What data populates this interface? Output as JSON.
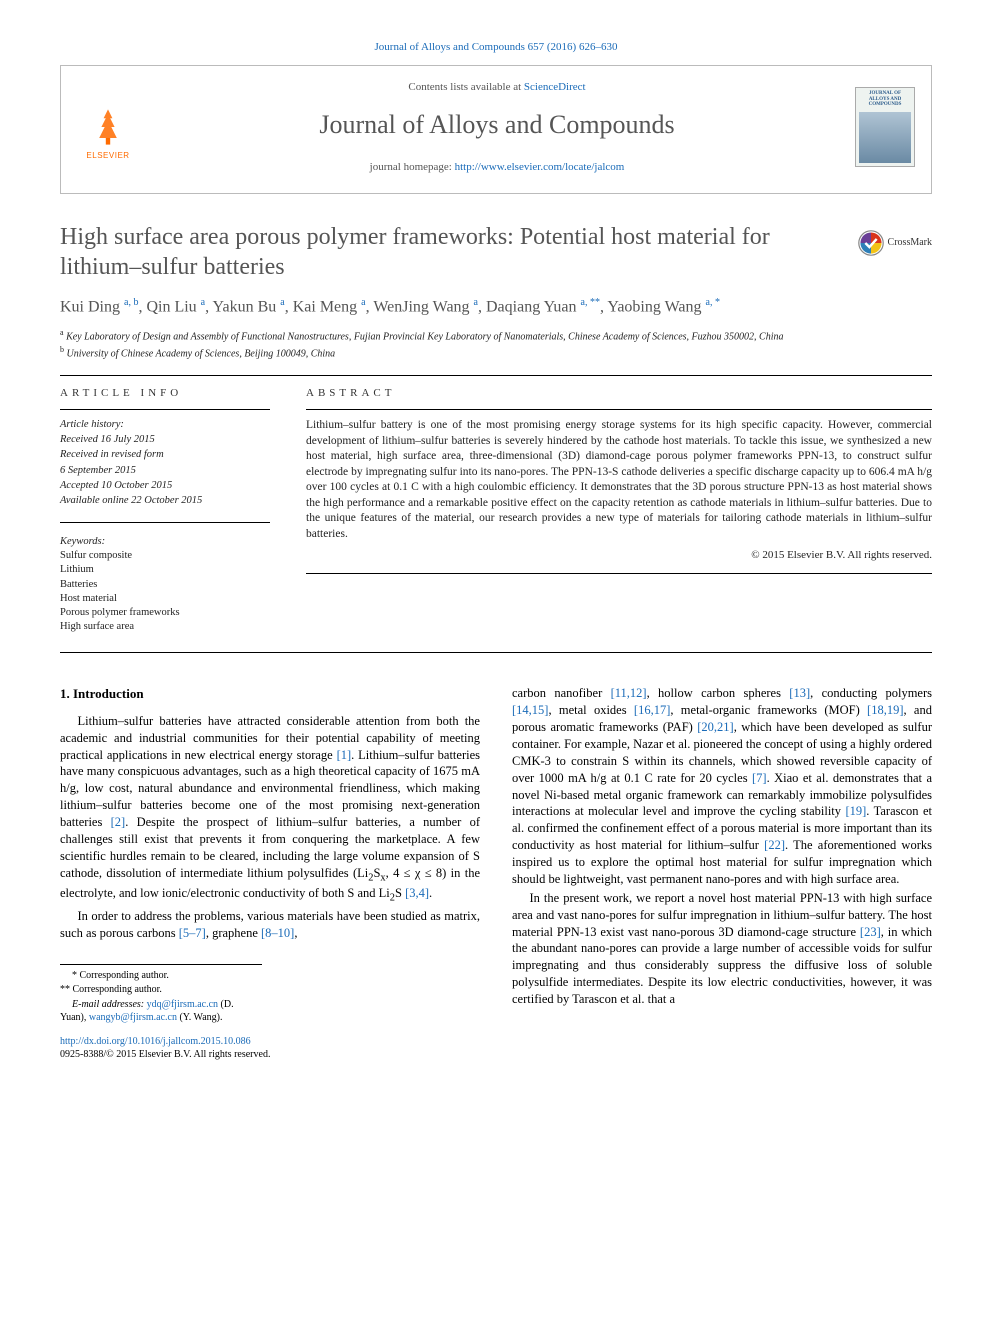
{
  "header": {
    "citation": "Journal of Alloys and Compounds 657 (2016) 626–630",
    "contents_line_pre": "Contents lists available at ",
    "contents_link": "ScienceDirect",
    "journal_name": "Journal of Alloys and Compounds",
    "homepage_pre": "journal homepage: ",
    "homepage_url": "http://www.elsevier.com/locate/jalcom",
    "publisher_logo_text": "ELSEVIER",
    "cover_text": "JOURNAL OF ALLOYS AND COMPOUNDS"
  },
  "crossmark_label": "CrossMark",
  "title": "High surface area porous polymer frameworks: Potential host material for lithium–sulfur batteries",
  "authors_html": "Kui Ding <sup>a, b</sup>, Qin Liu <sup>a</sup>, Yakun Bu <sup>a</sup>, Kai Meng <sup>a</sup>, WenJing Wang <sup>a</sup>, Daqiang Yuan <sup>a, **</sup>, Yaobing Wang <sup>a, *</sup>",
  "affils": [
    "<sup>a</sup> Key Laboratory of Design and Assembly of Functional Nanostructures, Fujian Provincial Key Laboratory of Nanomaterials, Chinese Academy of Sciences, Fuzhou 350002, China",
    "<sup>b</sup> University of Chinese Academy of Sciences, Beijing 100049, China"
  ],
  "info_label": "ARTICLE INFO",
  "abs_label": "ABSTRACT",
  "history": {
    "head": "Article history:",
    "lines": [
      "Received 16 July 2015",
      "Received in revised form",
      "6 September 2015",
      "Accepted 10 October 2015",
      "Available online 22 October 2015"
    ]
  },
  "keywords": {
    "head": "Keywords:",
    "items": [
      "Sulfur composite",
      "Lithium",
      "Batteries",
      "Host material",
      "Porous polymer frameworks",
      "High surface area"
    ]
  },
  "abstract": "Lithium–sulfur battery is one of the most promising energy storage systems for its high specific capacity. However, commercial development of lithium–sulfur batteries is severely hindered by the cathode host materials. To tackle this issue, we synthesized a new host material, high surface area, three-dimensional (3D) diamond-cage porous polymer frameworks PPN-13, to construct sulfur electrode by impregnating sulfur into its nano-pores. The PPN-13-S cathode deliveries a specific discharge capacity up to 606.4 mA h/g over 100 cycles at 0.1 C with a high coulombic efficiency. It demonstrates that the 3D porous structure PPN-13 as host material shows the high performance and a remarkable positive effect on the capacity retention as cathode materials in lithium–sulfur batteries. Due to the unique features of the material, our research provides a new type of materials for tailoring cathode materials in lithium–sulfur batteries.",
  "copyright": "© 2015 Elsevier B.V. All rights reserved.",
  "intro_heading": "1. Introduction",
  "intro_p1": "Lithium–sulfur batteries have attracted considerable attention from both the academic and industrial communities for their potential capability of meeting practical applications in new electrical energy storage <a class=\"ref\">[1]</a>. Lithium–sulfur batteries have many conspicuous advantages, such as a high theoretical capacity of 1675 mA h/g, low cost, natural abundance and environmental friendliness, which making lithium–sulfur batteries become one of the most promising next-generation batteries <a class=\"ref\">[2]</a>. Despite the prospect of lithium–sulfur batteries, a number of challenges still exist that prevents it from conquering the marketplace. A few scientific hurdles remain to be cleared, including the large volume expansion of S cathode, dissolution of intermediate lithium polysulfides (Li<sub>2</sub>S<sub>x</sub>, 4 ≤ χ ≤ 8) in the electrolyte, and low ionic/electronic conductivity of both S and Li<sub>2</sub>S <a class=\"ref\">[3,4]</a>.",
  "intro_p2": "In order to address the problems, various materials have been studied as matrix, such as porous carbons <a class=\"ref\">[5–7]</a>, graphene <a class=\"ref\">[8–10]</a>,",
  "intro_p3": "carbon nanofiber <a class=\"ref\">[11,12]</a>, hollow carbon spheres <a class=\"ref\">[13]</a>, conducting polymers <a class=\"ref\">[14,15]</a>, metal oxides <a class=\"ref\">[16,17]</a>, metal-organic frameworks (MOF) <a class=\"ref\">[18,19]</a>, and porous aromatic frameworks (PAF) <a class=\"ref\">[20,21]</a>, which have been developed as sulfur container. For example, Nazar et al. pioneered the concept of using a highly ordered CMK-3 to constrain S within its channels, which showed reversible capacity of over 1000 mA h/g at 0.1 C rate for 20 cycles <a class=\"ref\">[7]</a>. Xiao et al. demonstrates that a novel Ni-based metal organic framework can remarkably immobilize polysulfides interactions at molecular level and improve the cycling stability <a class=\"ref\">[19]</a>. Tarascon et al. confirmed the confinement effect of a porous material is more important than its conductivity as host material for lithium–sulfur <a class=\"ref\">[22]</a>. The aforementioned works inspired us to explore the optimal host material for sulfur impregnation which should be lightweight, vast permanent nano-pores and with high surface area.",
  "intro_p4": "In the present work, we report a novel host material PPN-13 with high surface area and vast nano-pores for sulfur impregnation in lithium–sulfur battery. The host material PPN-13 exist vast nano-porous 3D diamond-cage structure <a class=\"ref\">[23]</a>, in which the abundant nano-pores can provide a large number of accessible voids for sulfur impregnating and thus considerably suppress the diffusive loss of soluble polysulfide intermediates. Despite its low electric conductivities, however, it was certified by Tarascon et al. that a",
  "footnotes": {
    "c1": "* Corresponding author.",
    "c2": "** Corresponding author.",
    "email_pre": "E-mail addresses: ",
    "email1": "ydq@fjirsm.ac.cn",
    "email1_name": " (D. Yuan), ",
    "email2": "wangyb@fjirsm.ac.cn",
    "email2_name": " (Y. Wang)."
  },
  "doi": {
    "url": "http://dx.doi.org/10.1016/j.jallcom.2015.10.086",
    "line2": "0925-8388/© 2015 Elsevier B.V. All rights reserved."
  },
  "colors": {
    "link": "#1a6bb8",
    "title_gray": "#555555",
    "orange": "#ff6b00",
    "black": "#000000"
  }
}
